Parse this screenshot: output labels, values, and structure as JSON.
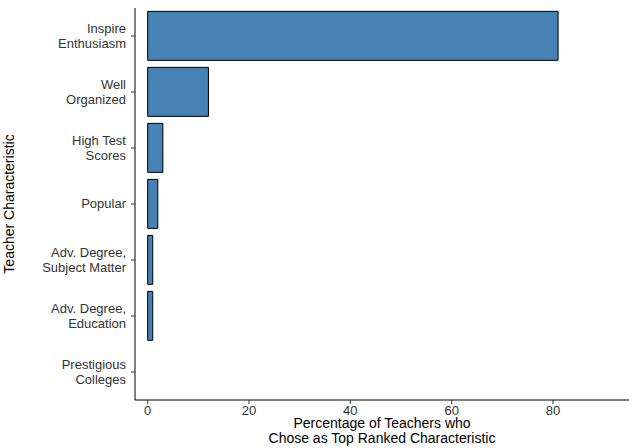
{
  "chart_data": {
    "type": "bar",
    "orientation": "horizontal",
    "categories": [
      "Inspire\nEnthusiasm",
      "Well\nOrganized",
      "High Test\nScores",
      "Popular",
      "Adv. Degree,\nSubject Matter",
      "Adv. Degree,\nEducation",
      "Prestigious\nColleges"
    ],
    "values": [
      81,
      12,
      3,
      2,
      1,
      1,
      0
    ],
    "color": "#4682b4",
    "xlim": [
      -2.5,
      95
    ],
    "xticks": [
      0,
      20,
      40,
      60,
      80
    ],
    "x_label": "Percentage of Teachers who\nChose as Top Ranked Characteristic",
    "y_label": "Teacher Characteristic",
    "grid": false
  }
}
